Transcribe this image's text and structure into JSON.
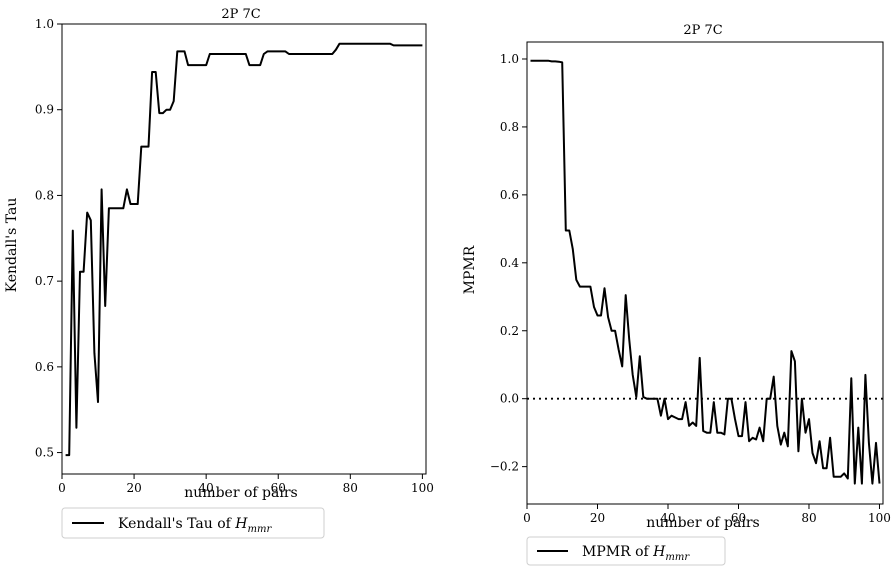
{
  "chart_data": [
    {
      "type": "line",
      "title": "2P 7C",
      "xlabel": "number of pairs",
      "ylabel": "Kendall's Tau",
      "xlim": [
        0,
        101
      ],
      "ylim": [
        0.475,
        1.0
      ],
      "xticks": [
        0,
        20,
        40,
        60,
        80,
        100
      ],
      "yticks": [
        0.5,
        0.6,
        0.7,
        0.8,
        0.9,
        1.0
      ],
      "xtick_labels": [
        "0",
        "20",
        "40",
        "60",
        "80",
        "100"
      ],
      "ytick_labels": [
        "0.5",
        "0.6",
        "0.7",
        "0.8",
        "0.9",
        "1.0"
      ],
      "grid": false,
      "legend_position": "below",
      "series": [
        {
          "name": "Kendall's Tau of H_mmr",
          "color": "#000000",
          "x": [
            1,
            2,
            3,
            4,
            5,
            6,
            7,
            8,
            9,
            10,
            11,
            12,
            13,
            14,
            15,
            16,
            17,
            18,
            19,
            20,
            21,
            22,
            23,
            24,
            25,
            26,
            27,
            28,
            29,
            30,
            31,
            32,
            33,
            34,
            35,
            36,
            37,
            38,
            39,
            40,
            41,
            42,
            43,
            44,
            45,
            46,
            47,
            48,
            49,
            50,
            51,
            52,
            53,
            54,
            55,
            56,
            57,
            58,
            59,
            60,
            61,
            62,
            63,
            64,
            65,
            66,
            67,
            68,
            69,
            70,
            71,
            72,
            73,
            74,
            75,
            76,
            77,
            78,
            79,
            80,
            81,
            82,
            83,
            84,
            85,
            86,
            87,
            88,
            89,
            90,
            91,
            92,
            93,
            94,
            95,
            96,
            97,
            98,
            99,
            100
          ],
          "y": [
            0.497,
            0.497,
            0.759,
            0.529,
            0.711,
            0.711,
            0.78,
            0.771,
            0.616,
            0.559,
            0.807,
            0.671,
            0.785,
            0.785,
            0.785,
            0.785,
            0.785,
            0.807,
            0.79,
            0.79,
            0.79,
            0.857,
            0.857,
            0.857,
            0.944,
            0.944,
            0.896,
            0.896,
            0.9,
            0.9,
            0.91,
            0.968,
            0.968,
            0.968,
            0.952,
            0.952,
            0.952,
            0.952,
            0.952,
            0.952,
            0.965,
            0.965,
            0.965,
            0.965,
            0.965,
            0.965,
            0.965,
            0.965,
            0.965,
            0.965,
            0.965,
            0.952,
            0.952,
            0.952,
            0.952,
            0.965,
            0.968,
            0.968,
            0.968,
            0.968,
            0.968,
            0.968,
            0.965,
            0.965,
            0.965,
            0.965,
            0.965,
            0.965,
            0.965,
            0.965,
            0.965,
            0.965,
            0.965,
            0.965,
            0.965,
            0.97,
            0.977,
            0.977,
            0.977,
            0.977,
            0.977,
            0.977,
            0.977,
            0.977,
            0.977,
            0.977,
            0.977,
            0.977,
            0.977,
            0.977,
            0.977,
            0.975,
            0.975,
            0.975,
            0.975,
            0.975,
            0.975,
            0.975,
            0.975,
            0.975
          ]
        }
      ]
    },
    {
      "type": "line",
      "title": "2P 7C",
      "xlabel": "number of pairs",
      "ylabel": "MPMR",
      "xlim": [
        0,
        101
      ],
      "ylim": [
        -0.31,
        1.05
      ],
      "xticks": [
        0,
        20,
        40,
        60,
        80,
        100
      ],
      "yticks": [
        -0.2,
        0.0,
        0.2,
        0.4,
        0.6,
        0.8,
        1.0
      ],
      "xtick_labels": [
        "0",
        "20",
        "40",
        "60",
        "80",
        "100"
      ],
      "ytick_labels": [
        "−0.2",
        "0.0",
        "0.2",
        "0.4",
        "0.6",
        "0.8",
        "1.0"
      ],
      "grid": false,
      "legend_position": "below",
      "reference_line": {
        "y": 0.0,
        "style": "dotted"
      },
      "series": [
        {
          "name": "MPMR of H_mmr",
          "color": "#000000",
          "x": [
            1,
            2,
            3,
            4,
            5,
            6,
            7,
            8,
            9,
            10,
            11,
            12,
            13,
            14,
            15,
            16,
            17,
            18,
            19,
            20,
            21,
            22,
            23,
            24,
            25,
            26,
            27,
            28,
            29,
            30,
            31,
            32,
            33,
            34,
            35,
            36,
            37,
            38,
            39,
            40,
            41,
            42,
            43,
            44,
            45,
            46,
            47,
            48,
            49,
            50,
            51,
            52,
            53,
            54,
            55,
            56,
            57,
            58,
            59,
            60,
            61,
            62,
            63,
            64,
            65,
            66,
            67,
            68,
            69,
            70,
            71,
            72,
            73,
            74,
            75,
            76,
            77,
            78,
            79,
            80,
            81,
            82,
            83,
            84,
            85,
            86,
            87,
            88,
            89,
            90,
            91,
            92,
            93,
            94,
            95,
            96,
            97,
            98,
            99,
            100
          ],
          "y": [
            0.995,
            0.995,
            0.995,
            0.995,
            0.995,
            0.995,
            0.993,
            0.993,
            0.992,
            0.99,
            0.495,
            0.495,
            0.44,
            0.35,
            0.33,
            0.33,
            0.33,
            0.33,
            0.27,
            0.245,
            0.245,
            0.325,
            0.24,
            0.2,
            0.2,
            0.145,
            0.095,
            0.305,
            0.175,
            0.07,
            0.005,
            0.125,
            0.005,
            0.0,
            0.0,
            0.0,
            0.0,
            -0.05,
            0.0,
            -0.06,
            -0.05,
            -0.055,
            -0.06,
            -0.06,
            -0.01,
            -0.08,
            -0.07,
            -0.08,
            0.12,
            -0.095,
            -0.1,
            -0.1,
            -0.01,
            -0.1,
            -0.1,
            -0.105,
            0.0,
            0.0,
            -0.06,
            -0.11,
            -0.11,
            -0.01,
            -0.125,
            -0.115,
            -0.12,
            -0.085,
            -0.125,
            0.0,
            0.0,
            0.065,
            -0.08,
            -0.135,
            -0.1,
            -0.14,
            0.14,
            0.11,
            -0.155,
            0.0,
            -0.1,
            -0.06,
            -0.16,
            -0.19,
            -0.125,
            -0.205,
            -0.205,
            -0.115,
            -0.23,
            -0.23,
            -0.23,
            -0.22,
            -0.235,
            0.06,
            -0.25,
            -0.085,
            -0.25,
            0.07,
            -0.13,
            -0.25,
            -0.13,
            -0.25
          ]
        }
      ]
    }
  ],
  "legend": {
    "left": {
      "label_prefix": "Kendall's Tau of ",
      "symbol_main": "H",
      "symbol_sub": "mmr"
    },
    "right": {
      "label_prefix": "MPMR of ",
      "symbol_main": "H",
      "symbol_sub": "mmr"
    }
  }
}
